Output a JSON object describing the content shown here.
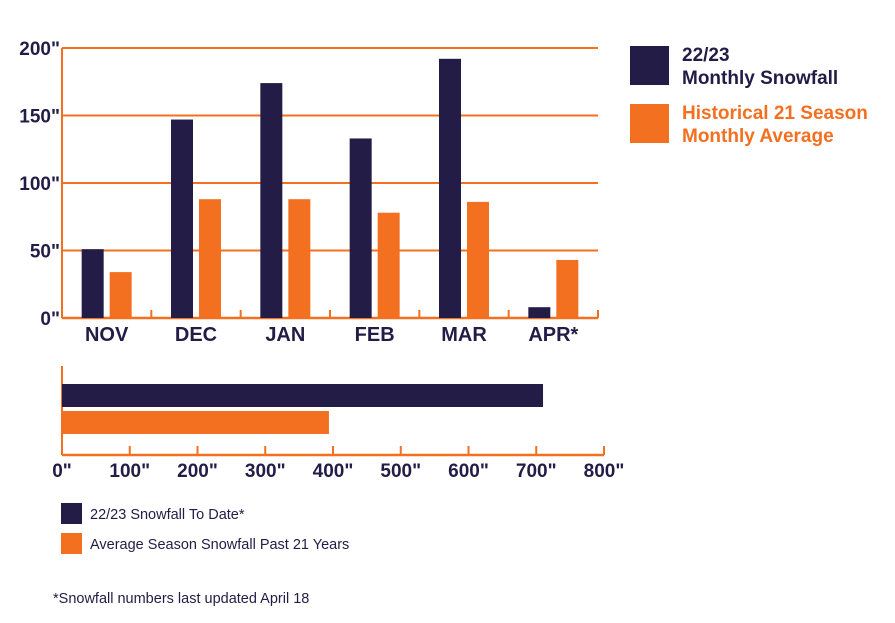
{
  "colors": {
    "navy": "#231c46",
    "orange": "#f37021",
    "axis": "#f37021"
  },
  "chart_data": [
    {
      "type": "bar",
      "categories": [
        "NOV",
        "DEC",
        "JAN",
        "FEB",
        "MAR",
        "APR*"
      ],
      "ylim": [
        0,
        200
      ],
      "yticks": [
        "0\"",
        "50\"",
        "100\"",
        "150\"",
        "200\""
      ],
      "ytick_values": [
        0,
        50,
        100,
        150,
        200
      ],
      "grid": true,
      "legend_position": "right",
      "series": [
        {
          "name": "22/23 Monthly Snowfall",
          "legend_lines": [
            "22/23",
            "Monthly Snowfall"
          ],
          "color": "#231c46",
          "values": [
            51,
            147,
            174,
            133,
            192,
            8
          ]
        },
        {
          "name": "Historical 21 Season Monthly Average",
          "legend_lines": [
            "Historical 21 Season",
            "Monthly Average"
          ],
          "color": "#f37021",
          "values": [
            34,
            88,
            88,
            78,
            86,
            43
          ]
        }
      ]
    },
    {
      "type": "bar",
      "orientation": "horizontal",
      "xlim": [
        0,
        800
      ],
      "xticks": [
        "0\"",
        "100\"",
        "200\"",
        "300\"",
        "400\"",
        "500\"",
        "600\"",
        "700\"",
        "800\""
      ],
      "xtick_values": [
        0,
        100,
        200,
        300,
        400,
        500,
        600,
        700,
        800
      ],
      "legend_position": "bottom-left",
      "series": [
        {
          "name": "22/23 Snowfall To Date*",
          "color": "#231c46",
          "value": 710
        },
        {
          "name": "Average Season Snowfall Past 21 Years",
          "color": "#f37021",
          "value": 394
        }
      ]
    }
  ],
  "footnote": "*Snowfall numbers last updated April 18"
}
